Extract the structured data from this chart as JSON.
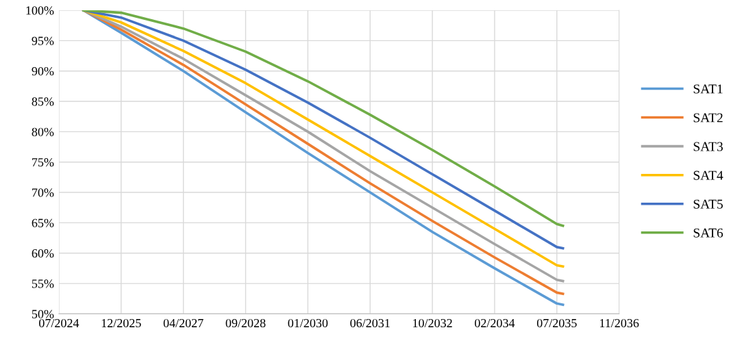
{
  "chart_data": {
    "type": "line",
    "x": [
      "2025-02-12",
      "2025-12-11",
      "2027-04-25",
      "2028-09-06",
      "2030-01-19",
      "2031-06-03",
      "2032-10-15",
      "2034-02-27",
      "2035-07-12",
      "2035-08-30"
    ],
    "series": [
      {
        "name": "SAT1",
        "color": "#5b9bd5",
        "values": [
          100,
          96.3,
          90,
          83.2,
          76.5,
          70,
          63.5,
          57.5,
          51.7,
          51.5
        ]
      },
      {
        "name": "SAT2",
        "color": "#ed7d31",
        "values": [
          100,
          96.8,
          91,
          84.5,
          78,
          71.5,
          65.3,
          59.3,
          53.5,
          53.3
        ]
      },
      {
        "name": "SAT3",
        "color": "#a5a5a5",
        "values": [
          100,
          97.3,
          92,
          86,
          80,
          73.5,
          67.5,
          61.5,
          55.6,
          55.4
        ]
      },
      {
        "name": "SAT4",
        "color": "#ffc000",
        "values": [
          100,
          98,
          93.3,
          88,
          82,
          76,
          70,
          64,
          58,
          57.8
        ]
      },
      {
        "name": "SAT5",
        "color": "#4472c4",
        "values": [
          100,
          98.8,
          95,
          90.2,
          84.8,
          79,
          73,
          67,
          61,
          60.8
        ]
      },
      {
        "name": "SAT6",
        "color": "#70ad47",
        "values": [
          100,
          99.6,
          97,
          93.2,
          88.3,
          82.8,
          77,
          71,
          64.8,
          64.5
        ]
      }
    ],
    "xlim": [
      "2024-07-29",
      "2036-11-23"
    ],
    "xticks": [
      {
        "value": "2024-07-29",
        "label": "07/2024"
      },
      {
        "value": "2025-12-11",
        "label": "12/2025"
      },
      {
        "value": "2027-04-25",
        "label": "04/2027"
      },
      {
        "value": "2028-09-06",
        "label": "09/2028"
      },
      {
        "value": "2030-01-19",
        "label": "01/2030"
      },
      {
        "value": "2031-06-03",
        "label": "06/2031"
      },
      {
        "value": "2032-10-15",
        "label": "10/2032"
      },
      {
        "value": "2034-02-27",
        "label": "02/2034"
      },
      {
        "value": "2035-07-12",
        "label": "07/2035"
      },
      {
        "value": "2036-11-23",
        "label": "11/2036"
      }
    ],
    "ylim": [
      50,
      100
    ],
    "yticks": [
      {
        "value": 50,
        "label": "50%"
      },
      {
        "value": 55,
        "label": "55%"
      },
      {
        "value": 60,
        "label": "60%"
      },
      {
        "value": 65,
        "label": "65%"
      },
      {
        "value": 70,
        "label": "70%"
      },
      {
        "value": 75,
        "label": "75%"
      },
      {
        "value": 80,
        "label": "80%"
      },
      {
        "value": 85,
        "label": "85%"
      },
      {
        "value": 90,
        "label": "90%"
      },
      {
        "value": 95,
        "label": "95%"
      },
      {
        "value": 100,
        "label": "100%"
      }
    ],
    "grid": true,
    "legend": "right",
    "marker": "none",
    "line_style": "solid"
  }
}
